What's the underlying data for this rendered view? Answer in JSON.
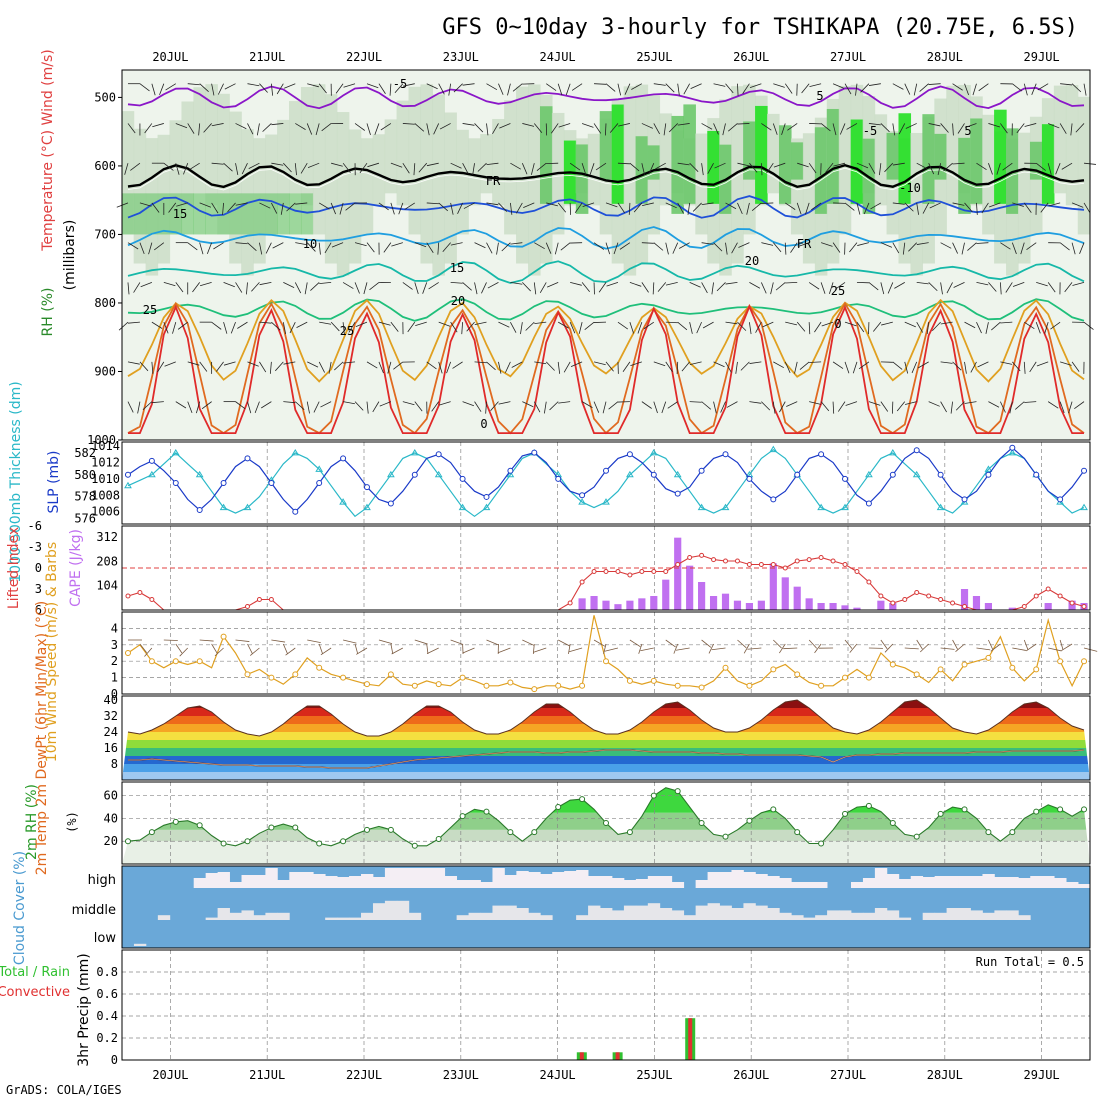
{
  "title": "GFS 0~10day 3-hourly for TSHIKAPA (20.75E, 6.5S)",
  "footer": "GrADS: COLA/IGES",
  "chart_data": {
    "type": "meteogram",
    "dates": [
      "20JUL",
      "21JUL",
      "22JUL",
      "23JUL",
      "24JUL",
      "25JUL",
      "26JUL",
      "27JUL",
      "28JUL",
      "29JUL"
    ],
    "panels": {
      "upper_air": {
        "ylabel": "(millibars)",
        "legend": [
          "RH (%)",
          "Temperature (°C)",
          "Wind (m/s)"
        ],
        "y_ticks": [
          "500",
          "600",
          "700",
          "800",
          "900",
          "1000"
        ],
        "ylim": [
          460,
          1000
        ],
        "isotherm_labels": [
          "-5",
          "5",
          "-5",
          "5",
          "10",
          "15",
          "15",
          "20",
          "20",
          "25",
          "25",
          "25",
          "0",
          "0",
          "FR",
          "FR",
          "-10"
        ],
        "temperature_levels": [
          {
            "t": -5,
            "p": 500,
            "color": "#8a16c8"
          },
          {
            "t": 0,
            "p": 615,
            "color": "#000000"
          },
          {
            "t": 5,
            "p": 660,
            "color": "#1f50d8"
          },
          {
            "t": 10,
            "p": 705,
            "color": "#1f9ee0"
          },
          {
            "t": 15,
            "p": 755,
            "color": "#16b8a8"
          },
          {
            "t": 20,
            "p": 810,
            "color": "#1fbf7a"
          },
          {
            "t": 25,
            "p": 855,
            "color": "#e0a020"
          },
          {
            "t": 30,
            "p": 905,
            "color": "#e06a20"
          },
          {
            "t": 35,
            "p": 950,
            "color": "#e02a2a"
          }
        ]
      },
      "thickness_slp": {
        "ylabel_left": "1000-500mb Thickness (dm)",
        "ylabel_right": "SLP (mb)",
        "left_ticks": [
          "576",
          "578",
          "580",
          "582"
        ],
        "right_ticks": [
          "1006",
          "1008",
          "1010",
          "1012",
          "1014"
        ],
        "thickness_dm": [
          579,
          579.5,
          580,
          581,
          582,
          581,
          580,
          578.5,
          577,
          576.5,
          577,
          578,
          579.5,
          581,
          582,
          581.5,
          580.5,
          579,
          577.5,
          576.2,
          577,
          578.5,
          580,
          581.5,
          582,
          581.5,
          580,
          578.5,
          577,
          576.2,
          577,
          578.5,
          580,
          581.5,
          582,
          581,
          580,
          578.5,
          577.5,
          577,
          577.5,
          578.5,
          580,
          581,
          582,
          581.5,
          580,
          578.5,
          577,
          576.5,
          577,
          578.5,
          580,
          581.5,
          582.3,
          581.5,
          580,
          578.5,
          577,
          576.5,
          577,
          578.5,
          580,
          581.5,
          582,
          581,
          580,
          578.5,
          577,
          576.5,
          577.5,
          579,
          580.5,
          581.5,
          582,
          581.5,
          580,
          578.5,
          577.5,
          576.5,
          577
        ],
        "slp_mb": [
          1010.5,
          1011.5,
          1012.2,
          1011,
          1009.5,
          1007.5,
          1006.2,
          1007.5,
          1009.5,
          1011.5,
          1012.5,
          1011.5,
          1009.5,
          1007.5,
          1006,
          1007.5,
          1009.5,
          1011.5,
          1012.5,
          1011,
          1009,
          1007.5,
          1007,
          1008.5,
          1010.5,
          1012.5,
          1013,
          1012,
          1010,
          1008.5,
          1007.8,
          1009,
          1011,
          1012.8,
          1013.2,
          1012,
          1010,
          1008.5,
          1008,
          1009,
          1011,
          1012.5,
          1013,
          1012,
          1010.5,
          1008.8,
          1008.2,
          1009,
          1011,
          1012.5,
          1013,
          1012,
          1010,
          1008.5,
          1007.5,
          1008.5,
          1010.5,
          1012.5,
          1013,
          1012,
          1010,
          1008,
          1007,
          1008.5,
          1010.5,
          1012.5,
          1013.5,
          1012.5,
          1010.5,
          1008.5,
          1007.5,
          1008.5,
          1010.5,
          1012.5,
          1013.8,
          1012.5,
          1010.5,
          1008.5,
          1007.5,
          1009,
          1011
        ]
      },
      "stability": {
        "ylabel_left": "Lifted Index",
        "ylabel_right": "CAPE (J/kg)",
        "left_ticks": [
          "-6",
          "-3",
          "0",
          "3",
          "6"
        ],
        "right_ticks": [
          "104",
          "208",
          "312"
        ],
        "lifted_index": [
          4,
          3.5,
          4.5,
          6,
          6,
          6,
          6,
          6,
          6,
          6,
          5.5,
          4.5,
          4.5,
          6,
          6,
          6,
          6,
          6,
          6,
          6,
          6,
          6,
          6,
          6,
          6,
          6,
          6,
          6,
          6,
          6,
          6,
          6,
          6,
          6,
          6,
          6,
          6,
          5,
          2,
          0.5,
          0.5,
          0.5,
          1,
          0.5,
          0.5,
          0.5,
          -0.5,
          -1.5,
          -1.8,
          -1.2,
          -1,
          -1,
          -0.5,
          -0.5,
          -0.5,
          0,
          -1,
          -1.2,
          -1.5,
          -1,
          -0.5,
          0.5,
          2,
          4,
          5,
          4.5,
          3.5,
          4,
          4.5,
          5,
          5.5,
          6,
          6,
          6,
          6,
          5.5,
          4,
          3,
          4,
          5,
          5.5
        ],
        "cape_jkg": [
          0,
          0,
          0,
          0,
          0,
          0,
          0,
          0,
          0,
          0,
          0,
          0,
          0,
          0,
          0,
          0,
          0,
          0,
          0,
          0,
          0,
          0,
          0,
          0,
          0,
          0,
          0,
          0,
          0,
          0,
          0,
          0,
          0,
          0,
          0,
          0,
          0,
          0,
          50,
          60,
          40,
          25,
          40,
          50,
          60,
          130,
          310,
          190,
          120,
          60,
          70,
          40,
          30,
          40,
          200,
          140,
          100,
          50,
          30,
          30,
          20,
          10,
          0,
          40,
          30,
          0,
          0,
          0,
          0,
          0,
          90,
          60,
          30,
          0,
          10,
          0,
          0,
          30,
          0,
          40,
          30
        ]
      },
      "wind10m": {
        "ylabel": "10m Wind Speed (m/s) & Barbs",
        "y_ticks": [
          "0",
          "1",
          "2",
          "3",
          "4"
        ],
        "speed_ms": [
          2.5,
          3,
          2,
          1.6,
          2,
          1.8,
          2,
          1.6,
          3.5,
          2.5,
          1.2,
          1.5,
          1,
          0.6,
          1.2,
          2.2,
          1.6,
          1.2,
          1,
          0.8,
          0.6,
          0.5,
          1.2,
          0.6,
          0.5,
          0.8,
          0.6,
          0.5,
          1,
          0.8,
          0.5,
          0.5,
          0.7,
          0.4,
          0.3,
          0.5,
          0.5,
          0.3,
          0.5,
          4.8,
          2,
          1.5,
          0.8,
          0.6,
          0.8,
          0.6,
          0.5,
          0.5,
          0.4,
          0.8,
          1.6,
          0.8,
          0.5,
          0.8,
          1.5,
          1.8,
          1.2,
          0.7,
          0.5,
          0.5,
          1,
          1.5,
          1,
          2.5,
          1.8,
          1.6,
          1.2,
          0.7,
          1.5,
          0.8,
          1.8,
          2,
          2.2,
          3.5,
          1.6,
          0.8,
          1.5,
          4.5,
          2,
          0.5,
          2
        ]
      },
      "temp2m": {
        "ylabel": "2m Temp 2m DewPt (6hr Min/Max) (°C)",
        "y_ticks": [
          "8",
          "16",
          "24",
          "32",
          "40"
        ],
        "temp_c": [
          24,
          23,
          25,
          28,
          32,
          36,
          37,
          34,
          29,
          25,
          23,
          22,
          24,
          28,
          33,
          37,
          37,
          33,
          28,
          24,
          22,
          22,
          24,
          28,
          33,
          37,
          37,
          34,
          29,
          25,
          23,
          23,
          25,
          29,
          34,
          38,
          38,
          34,
          29,
          25,
          23,
          23,
          25,
          29,
          34,
          38,
          39,
          35,
          30,
          26,
          24,
          24,
          26,
          30,
          35,
          39,
          40,
          36,
          31,
          26,
          24,
          23,
          25,
          29,
          34,
          39,
          40,
          36,
          31,
          26,
          24,
          23,
          25,
          29,
          34,
          38,
          39,
          36,
          31,
          27,
          25
        ],
        "dewpt_c": [
          10,
          10,
          10.5,
          10,
          9.5,
          9,
          8.5,
          8,
          7.5,
          7.5,
          7.5,
          7,
          7,
          7,
          7,
          6.5,
          6.5,
          6,
          6,
          6,
          6,
          7,
          8,
          9,
          10,
          10.5,
          11,
          11.5,
          12,
          12.5,
          13,
          13.5,
          14,
          14,
          14,
          13.5,
          13.5,
          14,
          14,
          14.5,
          15,
          15,
          15,
          14.5,
          14,
          14,
          14,
          14,
          13.5,
          13.5,
          13,
          13,
          12.5,
          12.5,
          12.5,
          12.5,
          12.5,
          12,
          11.5,
          9,
          11.5,
          12.5,
          12.5,
          13,
          13,
          13.5,
          13.5,
          13.5,
          13.5,
          13.5,
          13.5,
          14,
          14,
          14,
          14.5,
          14.5,
          14.5,
          14.5,
          14.5,
          14.5,
          15
        ]
      },
      "rh2m": {
        "ylabel": "2m RH (%)",
        "y_ticks": [
          "20",
          "40",
          "60"
        ],
        "rh_pct": [
          20,
          21,
          28,
          34,
          37,
          38,
          34,
          25,
          18,
          16,
          20,
          27,
          32,
          35,
          32,
          23,
          18,
          16,
          20,
          26,
          30,
          33,
          30,
          22,
          16,
          16,
          22,
          32,
          42,
          48,
          46,
          38,
          28,
          20,
          28,
          40,
          50,
          56,
          57,
          48,
          36,
          26,
          28,
          42,
          60,
          67,
          64,
          50,
          36,
          26,
          24,
          30,
          38,
          45,
          48,
          40,
          28,
          18,
          18,
          30,
          44,
          50,
          51,
          46,
          36,
          26,
          24,
          32,
          44,
          50,
          48,
          40,
          28,
          20,
          28,
          40,
          46,
          52,
          48,
          42,
          48
        ]
      },
      "cloud_cover": {
        "ylabel": "Cloud Cover (%)",
        "categories": [
          "high",
          "middle",
          "low"
        ],
        "high_pct": [
          0,
          0,
          0,
          0,
          0,
          0,
          50,
          75,
          80,
          30,
          65,
          65,
          100,
          40,
          80,
          80,
          70,
          60,
          55,
          60,
          70,
          55,
          100,
          100,
          100,
          100,
          100,
          60,
          40,
          40,
          30,
          100,
          65,
          85,
          80,
          70,
          80,
          85,
          90,
          60,
          60,
          50,
          40,
          45,
          60,
          60,
          30,
          0,
          40,
          80,
          80,
          90,
          80,
          70,
          60,
          50,
          30,
          30,
          30,
          0,
          0,
          30,
          50,
          100,
          70,
          45,
          60,
          55,
          60,
          60,
          60,
          60,
          70,
          55,
          55,
          50,
          60,
          60,
          50,
          30,
          20
        ],
        "middle_pct": [
          0,
          0,
          0,
          20,
          0,
          0,
          0,
          10,
          50,
          30,
          40,
          20,
          30,
          30,
          0,
          0,
          0,
          10,
          10,
          10,
          30,
          70,
          80,
          80,
          30,
          0,
          0,
          0,
          20,
          30,
          30,
          60,
          60,
          50,
          30,
          20,
          0,
          0,
          20,
          60,
          50,
          40,
          60,
          60,
          70,
          50,
          40,
          20,
          60,
          70,
          60,
          50,
          70,
          60,
          50,
          30,
          20,
          10,
          20,
          40,
          40,
          30,
          30,
          50,
          40,
          10,
          0,
          30,
          30,
          50,
          50,
          40,
          30,
          40,
          40,
          20,
          0,
          0,
          0,
          0,
          0
        ],
        "low_pct": [
          0,
          10,
          0,
          0,
          0,
          0,
          0,
          0,
          0,
          0,
          0,
          0,
          0,
          0,
          0,
          0,
          0,
          0,
          0,
          0,
          0,
          0,
          0,
          0,
          0,
          0,
          0,
          0,
          0,
          0,
          0,
          0,
          0,
          0,
          0,
          0,
          0,
          0,
          0,
          0,
          0,
          0,
          0,
          0,
          0,
          0,
          0,
          0,
          0,
          0,
          0,
          0,
          0,
          0,
          0,
          0,
          0,
          0,
          0,
          0,
          0,
          0,
          0,
          0,
          0,
          0,
          0,
          0,
          0,
          0,
          0,
          0,
          0,
          0,
          0,
          0,
          0,
          0,
          0,
          0,
          0
        ]
      },
      "precip": {
        "ylabel": "3hr Precip (mm)",
        "legend": [
          "Total / Rain",
          "Convective"
        ],
        "y_ticks": [
          "0",
          "0.2",
          "0.4",
          "0.6",
          "0.8"
        ],
        "ylim": [
          0,
          1.0
        ],
        "run_total": "Run Total = 0.5",
        "bars": [
          {
            "day": 24.25,
            "total": 0.07,
            "convective": 0.07
          },
          {
            "day": 24.62,
            "total": 0.07,
            "convective": 0.07
          },
          {
            "day": 25.37,
            "total": 0.38,
            "convective": 0.38
          }
        ]
      }
    }
  }
}
